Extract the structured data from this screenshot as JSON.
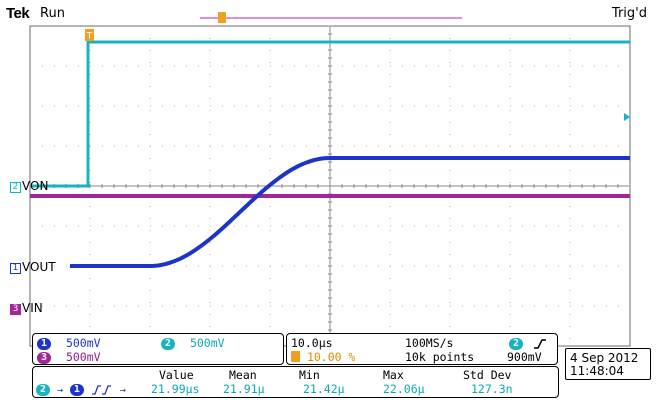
{
  "header": {
    "brand": "Tek",
    "run_status": "Run",
    "trigger_status": "Trig'd"
  },
  "markers": {
    "trigger_position": "T"
  },
  "channels": [
    {
      "num": "1",
      "name": "VOUT",
      "color": "#1e34c8",
      "scale": "500mV"
    },
    {
      "num": "2",
      "name": "VON",
      "color": "#14b4c0",
      "scale": "500mV"
    },
    {
      "num": "3",
      "name": "VIN",
      "color": "#a0279a",
      "scale": "500mV"
    }
  ],
  "timebase": {
    "per_div": "10.0µs",
    "trigger_pos": "10.00 %",
    "sample_rate": "100MS/s",
    "record_length": "10k points",
    "trigger_source": "2",
    "trigger_level": "900mV"
  },
  "datetime": {
    "date": "4 Sep  2012",
    "time": "11:48:04"
  },
  "measurement": {
    "headers": [
      "Value",
      "Mean",
      "Min",
      "Max",
      "Std Dev"
    ],
    "values": [
      "21.99µs",
      "21.91µ",
      "21.42µ",
      "22.06µ",
      "127.3n"
    ],
    "source": "2",
    "target": "1"
  },
  "colors": {
    "ch1": "#1e34c8",
    "ch2": "#14b4c0",
    "ch3": "#a0279a",
    "trigger": "#f0a020",
    "grid": "#b5b5b5",
    "frame": "#6a6a6a"
  },
  "icons": [
    "trigger-marker-icon",
    "rising-edge-icon",
    "delay-measure-icon"
  ]
}
